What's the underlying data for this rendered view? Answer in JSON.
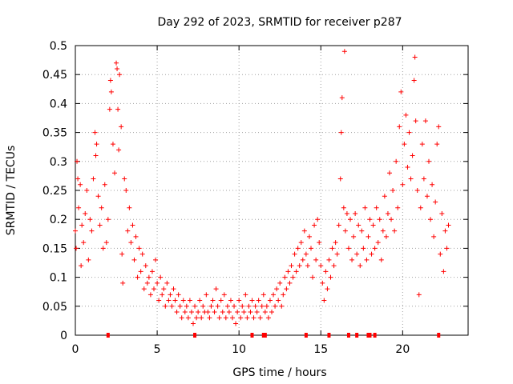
{
  "chart_data": {
    "type": "scatter",
    "title": "Day 292 of 2023, SRMTID for receiver p287",
    "xlabel": "GPS time / hours",
    "ylabel": "SRMTID / TECUs",
    "xlim": [
      0,
      24
    ],
    "ylim": [
      0,
      0.5
    ],
    "x_ticks": [
      0,
      5,
      10,
      15,
      20
    ],
    "y_ticks": [
      0,
      0.05,
      0.1,
      0.15,
      0.2,
      0.25,
      0.3,
      0.35,
      0.4,
      0.45,
      0.5
    ],
    "x_tick_labels": [
      "0",
      "5",
      "10",
      "15",
      "20"
    ],
    "y_tick_labels": [
      "0",
      "0.05",
      "0.1",
      "0.15",
      "0.2",
      "0.25",
      "0.3",
      "0.35",
      "0.4",
      "0.45",
      "0.5"
    ],
    "grid": true,
    "marker": "+",
    "series": [
      {
        "name": "SRMTID",
        "color": "#ff0000",
        "points": [
          [
            0.0,
            0.18
          ],
          [
            0.05,
            0.15
          ],
          [
            0.1,
            0.3
          ],
          [
            0.15,
            0.27
          ],
          [
            0.2,
            0.22
          ],
          [
            0.3,
            0.26
          ],
          [
            0.35,
            0.12
          ],
          [
            0.4,
            0.19
          ],
          [
            0.5,
            0.16
          ],
          [
            0.6,
            0.21
          ],
          [
            0.7,
            0.25
          ],
          [
            0.8,
            0.13
          ],
          [
            0.9,
            0.2
          ],
          [
            1.0,
            0.18
          ],
          [
            1.1,
            0.27
          ],
          [
            1.2,
            0.35
          ],
          [
            1.25,
            0.31
          ],
          [
            1.3,
            0.33
          ],
          [
            1.4,
            0.24
          ],
          [
            1.5,
            0.19
          ],
          [
            1.6,
            0.22
          ],
          [
            1.7,
            0.15
          ],
          [
            1.8,
            0.26
          ],
          [
            1.9,
            0.16
          ],
          [
            2.0,
            0.2
          ],
          [
            2.1,
            0.39
          ],
          [
            2.15,
            0.44
          ],
          [
            2.2,
            0.42
          ],
          [
            2.3,
            0.33
          ],
          [
            2.4,
            0.28
          ],
          [
            2.5,
            0.47
          ],
          [
            2.55,
            0.46
          ],
          [
            2.6,
            0.39
          ],
          [
            2.65,
            0.32
          ],
          [
            2.7,
            0.45
          ],
          [
            2.8,
            0.36
          ],
          [
            2.85,
            0.14
          ],
          [
            2.9,
            0.09
          ],
          [
            3.0,
            0.27
          ],
          [
            3.1,
            0.25
          ],
          [
            3.2,
            0.18
          ],
          [
            3.3,
            0.22
          ],
          [
            3.4,
            0.16
          ],
          [
            3.5,
            0.19
          ],
          [
            3.6,
            0.13
          ],
          [
            3.7,
            0.17
          ],
          [
            3.8,
            0.1
          ],
          [
            3.9,
            0.15
          ],
          [
            4.0,
            0.11
          ],
          [
            4.1,
            0.14
          ],
          [
            4.2,
            0.08
          ],
          [
            4.3,
            0.12
          ],
          [
            4.4,
            0.09
          ],
          [
            4.5,
            0.1
          ],
          [
            4.6,
            0.07
          ],
          [
            4.7,
            0.11
          ],
          [
            4.8,
            0.08
          ],
          [
            4.9,
            0.13
          ],
          [
            5.0,
            0.09
          ],
          [
            5.1,
            0.06
          ],
          [
            5.2,
            0.1
          ],
          [
            5.3,
            0.07
          ],
          [
            5.4,
            0.08
          ],
          [
            5.5,
            0.05
          ],
          [
            5.6,
            0.09
          ],
          [
            5.7,
            0.06
          ],
          [
            5.8,
            0.07
          ],
          [
            5.9,
            0.05
          ],
          [
            6.0,
            0.08
          ],
          [
            6.1,
            0.06
          ],
          [
            6.2,
            0.04
          ],
          [
            6.3,
            0.07
          ],
          [
            6.4,
            0.05
          ],
          [
            6.5,
            0.03
          ],
          [
            6.6,
            0.06
          ],
          [
            6.7,
            0.04
          ],
          [
            6.8,
            0.05
          ],
          [
            6.9,
            0.03
          ],
          [
            7.0,
            0.06
          ],
          [
            7.1,
            0.04
          ],
          [
            7.2,
            0.02
          ],
          [
            7.3,
            0.05
          ],
          [
            7.4,
            0.03
          ],
          [
            7.5,
            0.04
          ],
          [
            7.6,
            0.06
          ],
          [
            7.7,
            0.03
          ],
          [
            7.8,
            0.05
          ],
          [
            7.9,
            0.04
          ],
          [
            8.0,
            0.07
          ],
          [
            8.1,
            0.04
          ],
          [
            8.2,
            0.03
          ],
          [
            8.3,
            0.05
          ],
          [
            8.4,
            0.06
          ],
          [
            8.5,
            0.04
          ],
          [
            8.6,
            0.08
          ],
          [
            8.7,
            0.05
          ],
          [
            8.8,
            0.03
          ],
          [
            8.9,
            0.06
          ],
          [
            9.0,
            0.04
          ],
          [
            9.1,
            0.07
          ],
          [
            9.2,
            0.03
          ],
          [
            9.3,
            0.05
          ],
          [
            9.4,
            0.04
          ],
          [
            9.5,
            0.06
          ],
          [
            9.6,
            0.03
          ],
          [
            9.7,
            0.05
          ],
          [
            9.8,
            0.02
          ],
          [
            9.9,
            0.04
          ],
          [
            10.0,
            0.06
          ],
          [
            10.1,
            0.03
          ],
          [
            10.2,
            0.05
          ],
          [
            10.3,
            0.04
          ],
          [
            10.4,
            0.07
          ],
          [
            10.5,
            0.03
          ],
          [
            10.6,
            0.05
          ],
          [
            10.7,
            0.04
          ],
          [
            10.8,
            0.06
          ],
          [
            10.9,
            0.03
          ],
          [
            11.0,
            0.05
          ],
          [
            11.1,
            0.04
          ],
          [
            11.2,
            0.06
          ],
          [
            11.3,
            0.03
          ],
          [
            11.4,
            0.05
          ],
          [
            11.5,
            0.07
          ],
          [
            11.6,
            0.04
          ],
          [
            11.7,
            0.05
          ],
          [
            11.8,
            0.03
          ],
          [
            11.9,
            0.06
          ],
          [
            12.0,
            0.04
          ],
          [
            12.1,
            0.07
          ],
          [
            12.2,
            0.05
          ],
          [
            12.3,
            0.08
          ],
          [
            12.4,
            0.06
          ],
          [
            12.5,
            0.09
          ],
          [
            12.6,
            0.05
          ],
          [
            12.7,
            0.07
          ],
          [
            12.8,
            0.1
          ],
          [
            12.9,
            0.08
          ],
          [
            13.0,
            0.11
          ],
          [
            13.1,
            0.09
          ],
          [
            13.2,
            0.12
          ],
          [
            13.3,
            0.1
          ],
          [
            13.4,
            0.14
          ],
          [
            13.5,
            0.11
          ],
          [
            13.6,
            0.15
          ],
          [
            13.7,
            0.12
          ],
          [
            13.8,
            0.16
          ],
          [
            13.9,
            0.13
          ],
          [
            14.0,
            0.18
          ],
          [
            14.1,
            0.14
          ],
          [
            14.2,
            0.12
          ],
          [
            14.3,
            0.17
          ],
          [
            14.4,
            0.15
          ],
          [
            14.5,
            0.1
          ],
          [
            14.6,
            0.19
          ],
          [
            14.7,
            0.13
          ],
          [
            14.8,
            0.2
          ],
          [
            14.9,
            0.16
          ],
          [
            15.0,
            0.12
          ],
          [
            15.1,
            0.09
          ],
          [
            15.2,
            0.06
          ],
          [
            15.3,
            0.11
          ],
          [
            15.4,
            0.08
          ],
          [
            15.5,
            0.13
          ],
          [
            15.6,
            0.1
          ],
          [
            15.7,
            0.15
          ],
          [
            15.8,
            0.12
          ],
          [
            15.9,
            0.16
          ],
          [
            16.0,
            0.14
          ],
          [
            16.1,
            0.19
          ],
          [
            16.2,
            0.27
          ],
          [
            16.25,
            0.35
          ],
          [
            16.3,
            0.41
          ],
          [
            16.4,
            0.22
          ],
          [
            16.45,
            0.49
          ],
          [
            16.5,
            0.18
          ],
          [
            16.6,
            0.21
          ],
          [
            16.7,
            0.15
          ],
          [
            16.8,
            0.2
          ],
          [
            16.9,
            0.13
          ],
          [
            17.0,
            0.17
          ],
          [
            17.1,
            0.21
          ],
          [
            17.2,
            0.14
          ],
          [
            17.3,
            0.19
          ],
          [
            17.4,
            0.12
          ],
          [
            17.5,
            0.18
          ],
          [
            17.6,
            0.15
          ],
          [
            17.7,
            0.22
          ],
          [
            17.8,
            0.13
          ],
          [
            17.9,
            0.17
          ],
          [
            18.0,
            0.2
          ],
          [
            18.1,
            0.14
          ],
          [
            18.2,
            0.19
          ],
          [
            18.3,
            0.15
          ],
          [
            18.4,
            0.22
          ],
          [
            18.5,
            0.16
          ],
          [
            18.6,
            0.2
          ],
          [
            18.7,
            0.13
          ],
          [
            18.8,
            0.18
          ],
          [
            18.9,
            0.24
          ],
          [
            19.0,
            0.17
          ],
          [
            19.1,
            0.21
          ],
          [
            19.2,
            0.28
          ],
          [
            19.3,
            0.2
          ],
          [
            19.4,
            0.25
          ],
          [
            19.5,
            0.18
          ],
          [
            19.6,
            0.3
          ],
          [
            19.7,
            0.22
          ],
          [
            19.8,
            0.36
          ],
          [
            19.9,
            0.42
          ],
          [
            20.0,
            0.26
          ],
          [
            20.1,
            0.33
          ],
          [
            20.2,
            0.38
          ],
          [
            20.3,
            0.29
          ],
          [
            20.4,
            0.35
          ],
          [
            20.5,
            0.27
          ],
          [
            20.6,
            0.31
          ],
          [
            20.7,
            0.44
          ],
          [
            20.75,
            0.48
          ],
          [
            20.8,
            0.37
          ],
          [
            20.9,
            0.25
          ],
          [
            21.0,
            0.07
          ],
          [
            21.1,
            0.22
          ],
          [
            21.2,
            0.33
          ],
          [
            21.3,
            0.27
          ],
          [
            21.4,
            0.37
          ],
          [
            21.5,
            0.24
          ],
          [
            21.6,
            0.3
          ],
          [
            21.7,
            0.2
          ],
          [
            21.8,
            0.26
          ],
          [
            21.9,
            0.17
          ],
          [
            22.0,
            0.23
          ],
          [
            22.1,
            0.33
          ],
          [
            22.2,
            0.36
          ],
          [
            22.3,
            0.14
          ],
          [
            22.4,
            0.21
          ],
          [
            22.5,
            0.11
          ],
          [
            22.6,
            0.18
          ],
          [
            22.7,
            0.15
          ],
          [
            22.8,
            0.19
          ]
        ]
      }
    ],
    "zero_markers_x": [
      2.0,
      7.3,
      10.8,
      11.5,
      11.6,
      14.1,
      15.5,
      16.7,
      17.2,
      17.9,
      18.0,
      18.3,
      22.2
    ]
  }
}
